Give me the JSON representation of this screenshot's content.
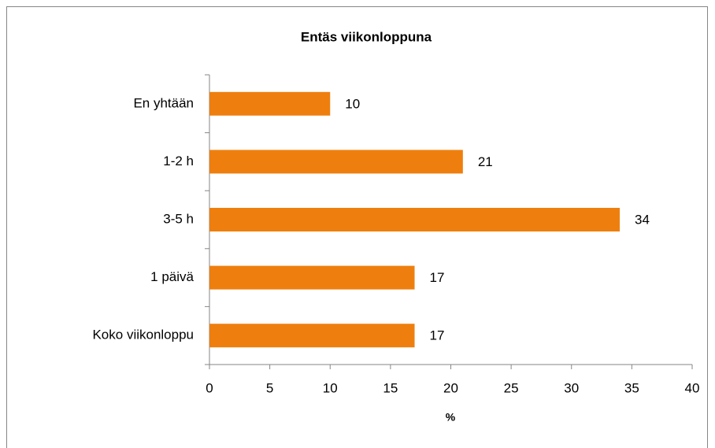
{
  "chart_data": {
    "type": "bar",
    "orientation": "horizontal",
    "title": "Entäs viikonloppuna",
    "categories": [
      "En yhtään",
      "1-2 h",
      "3-5 h",
      "1 päivä",
      "Koko viikonloppu"
    ],
    "values": [
      10,
      21,
      34,
      17,
      17
    ],
    "color": "#ee7f0e",
    "xlabel": "%",
    "xlim": [
      0,
      40
    ],
    "xticks": [
      0,
      5,
      10,
      15,
      20,
      25,
      30,
      35,
      40
    ],
    "grid": false
  }
}
